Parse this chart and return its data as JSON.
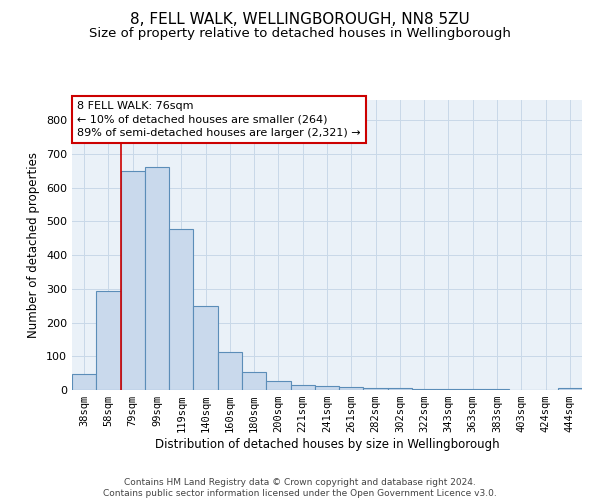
{
  "title1": "8, FELL WALK, WELLINGBOROUGH, NN8 5ZU",
  "title2": "Size of property relative to detached houses in Wellingborough",
  "xlabel": "Distribution of detached houses by size in Wellingborough",
  "ylabel": "Number of detached properties",
  "categories": [
    "38sqm",
    "58sqm",
    "79sqm",
    "99sqm",
    "119sqm",
    "140sqm",
    "160sqm",
    "180sqm",
    "200sqm",
    "221sqm",
    "241sqm",
    "261sqm",
    "282sqm",
    "302sqm",
    "322sqm",
    "343sqm",
    "363sqm",
    "383sqm",
    "403sqm",
    "424sqm",
    "444sqm"
  ],
  "values": [
    48,
    293,
    648,
    660,
    478,
    248,
    113,
    53,
    26,
    15,
    13,
    10,
    7,
    5,
    4,
    3,
    3,
    2,
    1,
    0,
    6
  ],
  "bar_color": "#c9d9ec",
  "bar_edge_color": "#5b8db8",
  "vline_x_index": 2,
  "vline_color": "#cc0000",
  "annotation_text": "8 FELL WALK: 76sqm\n← 10% of detached houses are smaller (264)\n89% of semi-detached houses are larger (2,321) →",
  "annotation_box_color": "#ffffff",
  "annotation_box_edge": "#cc0000",
  "ylim": [
    0,
    860
  ],
  "yticks": [
    0,
    100,
    200,
    300,
    400,
    500,
    600,
    700,
    800
  ],
  "grid_color": "#c8d8e8",
  "bg_color": "#eaf1f8",
  "footer": "Contains HM Land Registry data © Crown copyright and database right 2024.\nContains public sector information licensed under the Open Government Licence v3.0.",
  "title1_fontsize": 11,
  "title2_fontsize": 9.5,
  "xlabel_fontsize": 8.5,
  "ylabel_fontsize": 8.5,
  "footer_fontsize": 6.5,
  "tick_fontsize": 7.5,
  "annot_fontsize": 8
}
